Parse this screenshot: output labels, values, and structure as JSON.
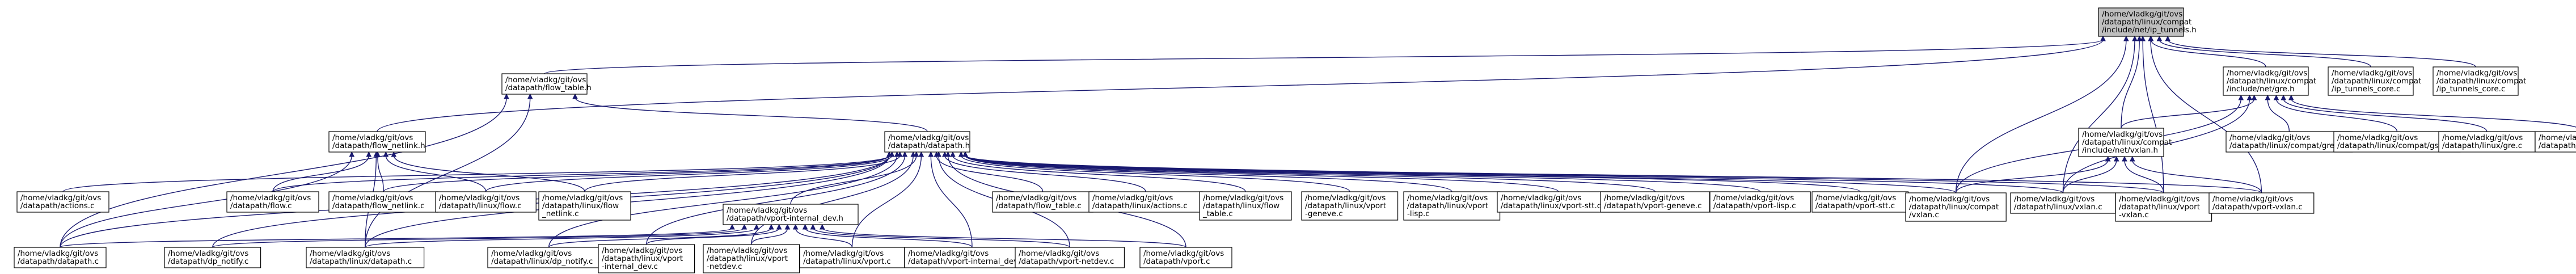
{
  "diagram": {
    "title": "",
    "edge_color": "#191970",
    "root_fill": "#bfbfbf",
    "nodes": [
      {
        "id": "n_root",
        "lines": [
          "/home/vladkg/git/ovs",
          "/datapath/linux/compat",
          "/include/net/ip_tunnels.h"
        ],
        "root": true
      },
      {
        "id": "n_flow_table_h",
        "lines": [
          "/home/vladkg/git/ovs",
          "/datapath/flow_table.h"
        ]
      },
      {
        "id": "n_compat_gre_h",
        "lines": [
          "/home/vladkg/git/ovs",
          "/datapath/linux/compat",
          "/include/net/gre.h"
        ]
      },
      {
        "id": "n_ip_tunnels_core",
        "lines": [
          "/home/vladkg/git/ovs",
          "/datapath/linux/compat",
          "/ip_tunnels_core.c"
        ]
      },
      {
        "id": "n_lisp_ip_tunnels_core",
        "lines": [
          "/home/vladkg/git/ovs",
          "/datapath/linux/compat",
          "/ip_tunnels_core.c"
        ]
      },
      {
        "id": "n_flow_netlink_h",
        "lines": [
          "/home/vladkg/git/ovs",
          "/datapath/flow_netlink.h"
        ]
      },
      {
        "id": "n_datapath_h",
        "lines": [
          "/home/vladkg/git/ovs",
          "/datapath/datapath.h"
        ]
      },
      {
        "id": "n_compat_vxlan_h",
        "lines": [
          "/home/vladkg/git/ovs",
          "/datapath/linux/compat",
          "/include/net/vxlan.h"
        ]
      },
      {
        "id": "n_compat_gre_c",
        "lines": [
          "/home/vladkg/git/ovs",
          "/datapath/linux/compat/gre.c"
        ]
      },
      {
        "id": "n_compat_gso_c",
        "lines": [
          "/home/vladkg/git/ovs",
          "/datapath/linux/compat/gso.c"
        ]
      },
      {
        "id": "n_linux_gre_c",
        "lines": [
          "/home/vladkg/git/ovs",
          "/datapath/linux/gre.c"
        ]
      },
      {
        "id": "n_linux_gso_c",
        "lines": [
          "/home/vladkg/git/ovs",
          "/datapath/linux/gso.c"
        ]
      },
      {
        "id": "n_actions_c",
        "lines": [
          "/home/vladkg/git/ovs",
          "/datapath/actions.c"
        ]
      },
      {
        "id": "n_flow_c",
        "lines": [
          "/home/vladkg/git/ovs",
          "/datapath/flow.c"
        ]
      },
      {
        "id": "n_flow_netlink_c",
        "lines": [
          "/home/vladkg/git/ovs",
          "/datapath/flow_netlink.c"
        ]
      },
      {
        "id": "n_linux_flow_c",
        "lines": [
          "/home/vladkg/git/ovs",
          "/datapath/linux/flow.c"
        ]
      },
      {
        "id": "n_linux_flow_netlink_c",
        "lines": [
          "/home/vladkg/git/ovs",
          "/datapath/linux/flow",
          "_netlink.c"
        ]
      },
      {
        "id": "n_flow_table_c",
        "lines": [
          "/home/vladkg/git/ovs",
          "/datapath/flow_table.c"
        ]
      },
      {
        "id": "n_linux_actions_c",
        "lines": [
          "/home/vladkg/git/ovs",
          "/datapath/linux/actions.c"
        ]
      },
      {
        "id": "n_linux_flow_table_c",
        "lines": [
          "/home/vladkg/git/ovs",
          "/datapath/linux/flow",
          "_table.c"
        ]
      },
      {
        "id": "n_linux_vport_geneve_c",
        "lines": [
          "/home/vladkg/git/ovs",
          "/datapath/linux/vport",
          "-geneve.c"
        ]
      },
      {
        "id": "n_linux_vport_lisp_c",
        "lines": [
          "/home/vladkg/git/ovs",
          "/datapath/linux/vport",
          "-lisp.c"
        ]
      },
      {
        "id": "n_linux_vport_stt_c",
        "lines": [
          "/home/vladkg/git/ovs",
          "/datapath/linux/vport-stt.c"
        ]
      },
      {
        "id": "n_vport_geneve_c",
        "lines": [
          "/home/vladkg/git/ovs",
          "/datapath/vport-geneve.c"
        ]
      },
      {
        "id": "n_vport_lisp_c",
        "lines": [
          "/home/vladkg/git/ovs",
          "/datapath/vport-lisp.c"
        ]
      },
      {
        "id": "n_vport_stt_c",
        "lines": [
          "/home/vladkg/git/ovs",
          "/datapath/vport-stt.c"
        ]
      },
      {
        "id": "n_linux_compat_vxlan_c",
        "lines": [
          "/home/vladkg/git/ovs",
          "/datapath/linux/compat",
          "/vxlan.c"
        ]
      },
      {
        "id": "n_linux_vxlan_c",
        "lines": [
          "/home/vladkg/git/ovs",
          "/datapath/linux/vxlan.c"
        ]
      },
      {
        "id": "n_linux_vport_vxlan_c",
        "lines": [
          "/home/vladkg/git/ovs",
          "/datapath/linux/vport",
          "-vxlan.c"
        ]
      },
      {
        "id": "n_vport_vxlan_c",
        "lines": [
          "/home/vladkg/git/ovs",
          "/datapath/vport-vxlan.c"
        ]
      },
      {
        "id": "n_vport_internal_dev_h",
        "lines": [
          "/home/vladkg/git/ovs",
          "/datapath/vport-internal_dev.h"
        ]
      },
      {
        "id": "n_datapath_c",
        "lines": [
          "/home/vladkg/git/ovs",
          "/datapath/datapath.c"
        ]
      },
      {
        "id": "n_dp_notify_c",
        "lines": [
          "/home/vladkg/git/ovs",
          "/datapath/dp_notify.c"
        ]
      },
      {
        "id": "n_linux_datapath_c",
        "lines": [
          "/home/vladkg/git/ovs",
          "/datapath/linux/datapath.c"
        ]
      },
      {
        "id": "n_linux_dp_notify_c",
        "lines": [
          "/home/vladkg/git/ovs",
          "/datapath/linux/dp_notify.c"
        ]
      },
      {
        "id": "n_linux_vport_internal_dev_c",
        "lines": [
          "/home/vladkg/git/ovs",
          "/datapath/linux/vport",
          "-internal_dev.c"
        ]
      },
      {
        "id": "n_linux_vport_netdev_c",
        "lines": [
          "/home/vladkg/git/ovs",
          "/datapath/linux/vport",
          "-netdev.c"
        ]
      },
      {
        "id": "n_linux_vport_c",
        "lines": [
          "/home/vladkg/git/ovs",
          "/datapath/linux/vport.c"
        ]
      },
      {
        "id": "n_vport_internal_dev_c",
        "lines": [
          "/home/vladkg/git/ovs",
          "/datapath/vport-internal_dev.c"
        ]
      },
      {
        "id": "n_vport_netdev_c",
        "lines": [
          "/home/vladkg/git/ovs",
          "/datapath/vport-netdev.c"
        ]
      },
      {
        "id": "n_vport_c",
        "lines": [
          "/home/vladkg/git/ovs",
          "/datapath/vport.c"
        ]
      }
    ],
    "edges": [
      [
        "n_flow_table_h",
        "n_root"
      ],
      [
        "n_compat_gre_h",
        "n_root"
      ],
      [
        "n_ip_tunnels_core",
        "n_root"
      ],
      [
        "n_lisp_ip_tunnels_core",
        "n_root"
      ],
      [
        "n_flow_netlink_h",
        "n_root"
      ],
      [
        "n_datapath_h",
        "n_flow_table_h"
      ],
      [
        "n_compat_vxlan_h",
        "n_root"
      ],
      [
        "n_linux_compat_vxlan_c",
        "n_root"
      ],
      [
        "n_linux_vxlan_c",
        "n_root"
      ],
      [
        "n_linux_vport_vxlan_c",
        "n_root"
      ],
      [
        "n_vport_vxlan_c",
        "n_root"
      ],
      [
        "n_datapath_c",
        "n_flow_table_h"
      ],
      [
        "n_linux_datapath_c",
        "n_flow_table_h"
      ],
      [
        "n_compat_gre_c",
        "n_compat_gre_h"
      ],
      [
        "n_compat_gso_c",
        "n_compat_gre_h"
      ],
      [
        "n_linux_gre_c",
        "n_compat_gre_h"
      ],
      [
        "n_linux_gso_c",
        "n_compat_gre_h"
      ],
      [
        "n_compat_vxlan_h",
        "n_compat_gre_h"
      ],
      [
        "n_linux_vxlan_c",
        "n_compat_gre_h"
      ],
      [
        "n_linux_compat_vxlan_c",
        "n_compat_gre_h"
      ],
      [
        "n_flow_c",
        "n_flow_netlink_h"
      ],
      [
        "n_flow_netlink_c",
        "n_flow_netlink_h"
      ],
      [
        "n_linux_flow_c",
        "n_flow_netlink_h"
      ],
      [
        "n_linux_flow_netlink_c",
        "n_flow_netlink_h"
      ],
      [
        "n_datapath_c",
        "n_flow_netlink_h"
      ],
      [
        "n_linux_datapath_c",
        "n_flow_netlink_h"
      ],
      [
        "n_actions_c",
        "n_datapath_h"
      ],
      [
        "n_flow_c",
        "n_datapath_h"
      ],
      [
        "n_flow_netlink_c",
        "n_datapath_h"
      ],
      [
        "n_linux_flow_c",
        "n_datapath_h"
      ],
      [
        "n_linux_flow_netlink_c",
        "n_datapath_h"
      ],
      [
        "n_flow_table_c",
        "n_datapath_h"
      ],
      [
        "n_linux_actions_c",
        "n_datapath_h"
      ],
      [
        "n_linux_flow_table_c",
        "n_datapath_h"
      ],
      [
        "n_linux_vport_geneve_c",
        "n_datapath_h"
      ],
      [
        "n_linux_vport_lisp_c",
        "n_datapath_h"
      ],
      [
        "n_linux_vport_stt_c",
        "n_datapath_h"
      ],
      [
        "n_vport_geneve_c",
        "n_datapath_h"
      ],
      [
        "n_vport_lisp_c",
        "n_datapath_h"
      ],
      [
        "n_vport_stt_c",
        "n_datapath_h"
      ],
      [
        "n_linux_compat_vxlan_c",
        "n_datapath_h"
      ],
      [
        "n_linux_vxlan_c",
        "n_datapath_h"
      ],
      [
        "n_linux_vport_vxlan_c",
        "n_datapath_h"
      ],
      [
        "n_vport_vxlan_c",
        "n_datapath_h"
      ],
      [
        "n_vport_internal_dev_h",
        "n_datapath_h"
      ],
      [
        "n_datapath_c",
        "n_datapath_h"
      ],
      [
        "n_dp_notify_c",
        "n_datapath_h"
      ],
      [
        "n_linux_datapath_c",
        "n_datapath_h"
      ],
      [
        "n_linux_dp_notify_c",
        "n_datapath_h"
      ],
      [
        "n_linux_vport_internal_dev_c",
        "n_datapath_h"
      ],
      [
        "n_linux_vport_netdev_c",
        "n_datapath_h"
      ],
      [
        "n_linux_vport_c",
        "n_datapath_h"
      ],
      [
        "n_vport_internal_dev_c",
        "n_datapath_h"
      ],
      [
        "n_vport_netdev_c",
        "n_datapath_h"
      ],
      [
        "n_vport_c",
        "n_datapath_h"
      ],
      [
        "n_linux_compat_vxlan_c",
        "n_compat_vxlan_h"
      ],
      [
        "n_linux_vxlan_c",
        "n_compat_vxlan_h"
      ],
      [
        "n_linux_vport_vxlan_c",
        "n_compat_vxlan_h"
      ],
      [
        "n_vport_vxlan_c",
        "n_compat_vxlan_h"
      ],
      [
        "n_datapath_c",
        "n_vport_internal_dev_h"
      ],
      [
        "n_dp_notify_c",
        "n_vport_internal_dev_h"
      ],
      [
        "n_linux_datapath_c",
        "n_vport_internal_dev_h"
      ],
      [
        "n_linux_dp_notify_c",
        "n_vport_internal_dev_h"
      ],
      [
        "n_linux_vport_internal_dev_c",
        "n_vport_internal_dev_h"
      ],
      [
        "n_linux_vport_netdev_c",
        "n_vport_internal_dev_h"
      ],
      [
        "n_linux_vport_c",
        "n_vport_internal_dev_h"
      ],
      [
        "n_vport_internal_dev_c",
        "n_vport_internal_dev_h"
      ],
      [
        "n_vport_netdev_c",
        "n_vport_internal_dev_h"
      ],
      [
        "n_vport_c",
        "n_vport_internal_dev_h"
      ]
    ]
  }
}
